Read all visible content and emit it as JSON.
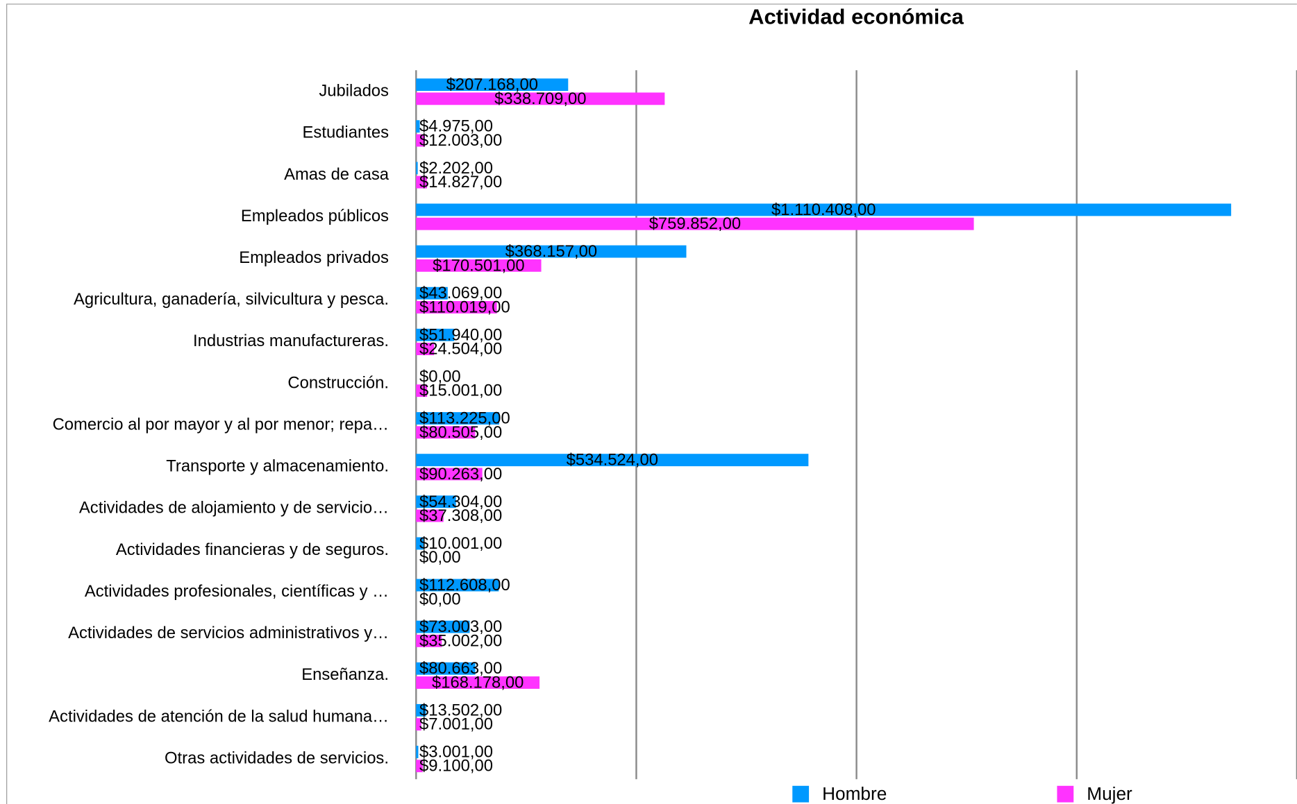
{
  "chart_data": {
    "type": "bar",
    "orientation": "horizontal",
    "title": "Actividad económica",
    "categories": [
      "Jubilados",
      "Estudiantes",
      "Amas de casa",
      "Empleados públicos",
      "Empleados privados",
      "Agricultura, ganadería,  silvicultura y pesca.",
      "Industrias manufactureras.",
      "Construcción.",
      "Comercio al por mayor y al por menor; repa…",
      "Transporte y almacenamiento.",
      "Actividades de alojamiento y de servicio…",
      "Actividades financieras y de seguros.",
      "Actividades profesionales, científicas y …",
      "Actividades de servicios administrativos y…",
      "Enseñanza.",
      "Actividades de atención de la salud humana…",
      "Otras actividades de servicios."
    ],
    "series": [
      {
        "name": "Hombre",
        "color": "#0099ff",
        "values": [
          207168,
          4975,
          2202,
          1110408,
          368157,
          43069,
          51940,
          0,
          113225,
          534524,
          54304,
          10001,
          112608,
          73003,
          80663,
          13502,
          3001
        ],
        "value_labels": [
          "$207.168,00",
          "$4.975,00",
          "$2.202,00",
          "$1.110.408,00",
          "$368.157,00",
          "$43.069,00",
          "$51.940,00",
          "$0,00",
          "$113.225,00",
          "$534.524,00",
          "$54.304,00",
          "$10.001,00",
          "$112.608,00",
          "$73.003,00",
          "$80.663,00",
          "$13.502,00",
          "$3.001,00"
        ]
      },
      {
        "name": "Mujer",
        "color": "#ff33ff",
        "values": [
          338709,
          12003,
          14827,
          759852,
          170501,
          110019,
          24504,
          15001,
          80505,
          90263,
          37308,
          0,
          0,
          35002,
          168178,
          7001,
          9100
        ],
        "value_labels": [
          "$338.709,00",
          "$12.003,00",
          "$14.827,00",
          "$759.852,00",
          "$170.501,00",
          "$110.019,00",
          "$24.504,00",
          "$15.001,00",
          "$80.505,00",
          "$90.263,00",
          "$37.308,00",
          "$0,00",
          "$0,00",
          "$35.002,00",
          "$168.178,00",
          "$7.001,00",
          "$9.100,00"
        ]
      }
    ],
    "xlim": [
      0,
      1200000
    ],
    "xticks": [
      0,
      300000,
      600000,
      900000,
      1200000
    ],
    "grid": true,
    "legend": "bottom"
  }
}
